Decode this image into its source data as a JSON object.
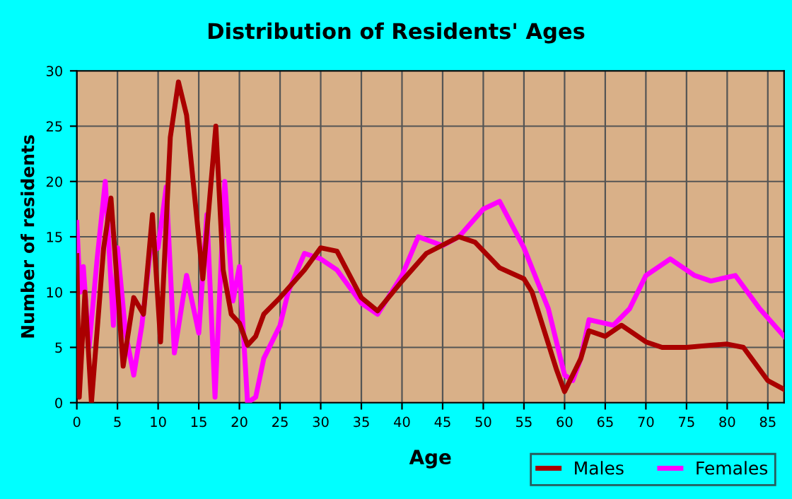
{
  "chart_data": {
    "type": "line",
    "title": "Distribution of Residents' Ages",
    "xlabel": "Age",
    "ylabel": "Number of residents",
    "xlim": [
      0,
      87
    ],
    "xticks": [
      0,
      5,
      10,
      15,
      20,
      25,
      30,
      35,
      40,
      45,
      50,
      55,
      60,
      65,
      70,
      75,
      80,
      85
    ],
    "ylim": [
      0,
      30
    ],
    "yticks": [
      0,
      5,
      10,
      15,
      20,
      25,
      30
    ],
    "grid": true,
    "legend": "bottom right",
    "marker": "none",
    "line_style": "solid",
    "series": [
      {
        "name": "Males",
        "color": "#aa0000",
        "x": [
          0,
          0.3,
          1,
          1.8,
          3.3,
          4.2,
          5.7,
          7,
          8.2,
          9.3,
          10.3,
          11.5,
          12.5,
          13.5,
          15.5,
          17.1,
          18,
          19,
          20,
          21,
          22,
          23,
          25,
          28,
          30,
          32,
          35,
          37,
          40,
          43,
          47,
          49,
          52,
          55,
          56,
          59,
          60,
          62,
          63,
          65,
          67,
          70,
          72,
          75,
          78,
          80,
          82,
          85,
          87
        ],
        "values": [
          13.3,
          0.5,
          10,
          0,
          14,
          18.5,
          3.3,
          9.5,
          8,
          17,
          5.5,
          24,
          29,
          26,
          11.2,
          25,
          12,
          8,
          7.2,
          5.2,
          6,
          8,
          9.5,
          12,
          14,
          13.7,
          9.5,
          8.3,
          11,
          13.5,
          15,
          14.5,
          12.2,
          11.2,
          10,
          3,
          1,
          4,
          6.5,
          6,
          7,
          5.5,
          5,
          5,
          5.2,
          5.3,
          5,
          2,
          1.2
        ]
      },
      {
        "name": "Females",
        "color": "#ff00ff",
        "x": [
          0,
          0.4,
          0.8,
          1.5,
          2.5,
          3.5,
          4.5,
          5,
          6,
          7,
          8,
          9,
          10,
          11,
          12,
          13.5,
          15,
          16,
          17,
          18.2,
          19.2,
          20,
          21,
          22,
          23,
          25,
          26,
          28,
          30,
          32,
          35,
          37,
          40,
          42,
          45,
          47,
          50,
          52,
          55,
          58,
          60,
          61,
          62,
          63,
          66,
          68,
          70,
          73,
          76,
          78,
          81,
          84,
          87
        ],
        "values": [
          16.3,
          10,
          12.3,
          5,
          13,
          20,
          7,
          14,
          6.3,
          2.5,
          7,
          13.5,
          14,
          19.5,
          4.5,
          11.5,
          6.3,
          17,
          0.5,
          20,
          9.2,
          12.3,
          0,
          0.5,
          4,
          7,
          10,
          13.5,
          13,
          12,
          9,
          8,
          11.5,
          15,
          14.2,
          15,
          17.5,
          18.2,
          14,
          8.5,
          2.5,
          2,
          4,
          7.5,
          7,
          8.5,
          11.5,
          13,
          11.5,
          11,
          11.5,
          8.5,
          6
        ]
      }
    ]
  }
}
